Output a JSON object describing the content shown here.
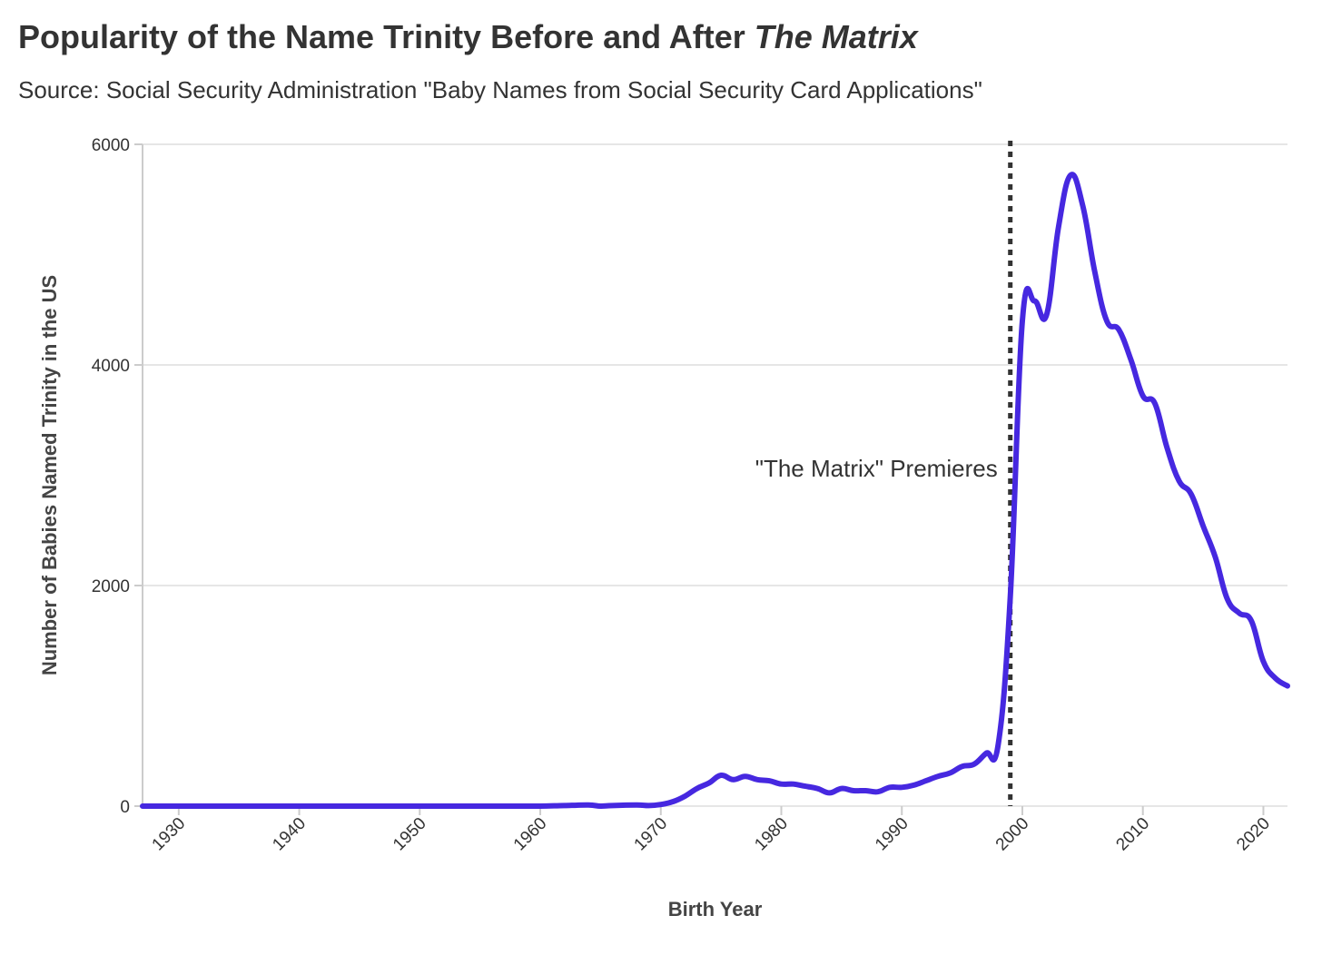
{
  "header": {
    "title_main": "Popularity of the Name Trinity Before and After ",
    "title_italic": "The Matrix",
    "subtitle": "Source: Social Security Administration \"Baby Names from Social Security Card Applications\""
  },
  "chart_data": {
    "type": "line",
    "title": "Popularity of the Name Trinity Before and After The Matrix",
    "subtitle": "Source: Social Security Administration \"Baby Names from Social Security Card Applications\"",
    "xlabel": "Birth Year",
    "ylabel": "Number of Babies Named Trinity in the US",
    "xlim": [
      1927,
      2022
    ],
    "ylim": [
      0,
      6000
    ],
    "x_ticks": [
      1930,
      1940,
      1950,
      1960,
      1970,
      1980,
      1990,
      2000,
      2010,
      2020
    ],
    "y_ticks": [
      0,
      2000,
      4000,
      6000
    ],
    "grid": "horizontal",
    "line_color": "#4628e0",
    "annotation": {
      "text": "\"The Matrix\" Premieres",
      "x": 1999
    },
    "series": [
      {
        "x": [
          1927,
          1930,
          1940,
          1950,
          1958,
          1960,
          1962,
          1964,
          1965,
          1966,
          1968,
          1969,
          1970,
          1971,
          1972,
          1973,
          1974,
          1975,
          1976,
          1977,
          1978,
          1979,
          1980,
          1981,
          1982,
          1983,
          1984,
          1985,
          1986,
          1987,
          1988,
          1989,
          1990,
          1991,
          1992,
          1993,
          1994,
          1995,
          1996,
          1997,
          1998,
          1999,
          2000,
          2001,
          2002,
          2003,
          2004,
          2005,
          2006,
          2007,
          2008,
          2009,
          2010,
          2011,
          2012,
          2013,
          2014,
          2015,
          2016,
          2017,
          2018,
          2019,
          2020,
          2021,
          2022
        ],
        "values": [
          0,
          0,
          0,
          0,
          0,
          0,
          5,
          10,
          0,
          5,
          10,
          5,
          15,
          40,
          90,
          160,
          210,
          280,
          240,
          270,
          240,
          230,
          200,
          200,
          180,
          160,
          120,
          160,
          140,
          140,
          130,
          170,
          170,
          190,
          230,
          270,
          300,
          360,
          380,
          480,
          560,
          1900,
          4400,
          4580,
          4450,
          5250,
          5720,
          5450,
          4850,
          4400,
          4320,
          4050,
          3720,
          3650,
          3250,
          2950,
          2830,
          2540,
          2260,
          1880,
          1750,
          1680,
          1310,
          1160,
          1090
        ]
      }
    ]
  }
}
